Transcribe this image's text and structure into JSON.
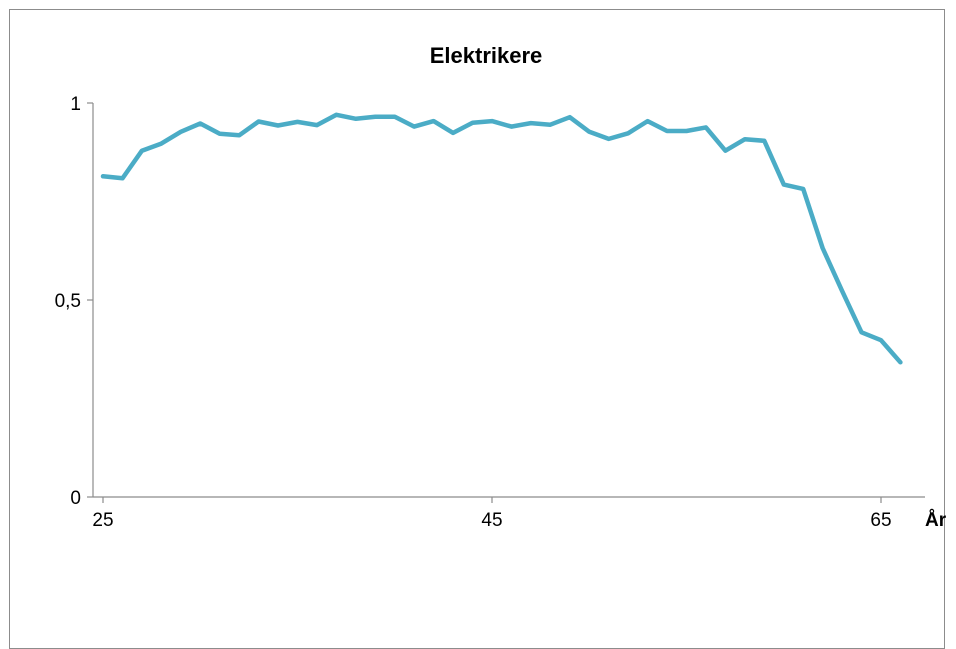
{
  "chart_data": {
    "type": "line",
    "title": "Elektrikere",
    "xlabel": "År",
    "ylabel": "",
    "xlim": [
      25,
      66
    ],
    "ylim": [
      0,
      1
    ],
    "x_ticks": [
      25,
      45,
      65
    ],
    "x_tick_labels": [
      "25",
      "45",
      "65"
    ],
    "y_ticks": [
      0,
      0.5,
      1
    ],
    "y_tick_labels": [
      "0",
      "0,5",
      "1"
    ],
    "grid": false,
    "legend": "none",
    "series": [
      {
        "color": "#4bacc6",
        "x": [
          25,
          26,
          27,
          28,
          29,
          30,
          31,
          32,
          33,
          34,
          35,
          36,
          37,
          38,
          39,
          40,
          41,
          42,
          43,
          44,
          45,
          46,
          47,
          48,
          49,
          50,
          51,
          52,
          53,
          54,
          55,
          56,
          57,
          58,
          59,
          60,
          61,
          62,
          63,
          64,
          65,
          66
        ],
        "values": [
          0.814,
          0.809,
          0.879,
          0.897,
          0.927,
          0.948,
          0.922,
          0.918,
          0.953,
          0.943,
          0.952,
          0.944,
          0.97,
          0.96,
          0.965,
          0.965,
          0.94,
          0.954,
          0.924,
          0.95,
          0.954,
          0.94,
          0.949,
          0.945,
          0.964,
          0.927,
          0.909,
          0.923,
          0.954,
          0.929,
          0.929,
          0.938,
          0.879,
          0.908,
          0.904,
          0.793,
          0.782,
          0.632,
          0.523,
          0.418,
          0.398,
          0.342
        ]
      }
    ]
  }
}
